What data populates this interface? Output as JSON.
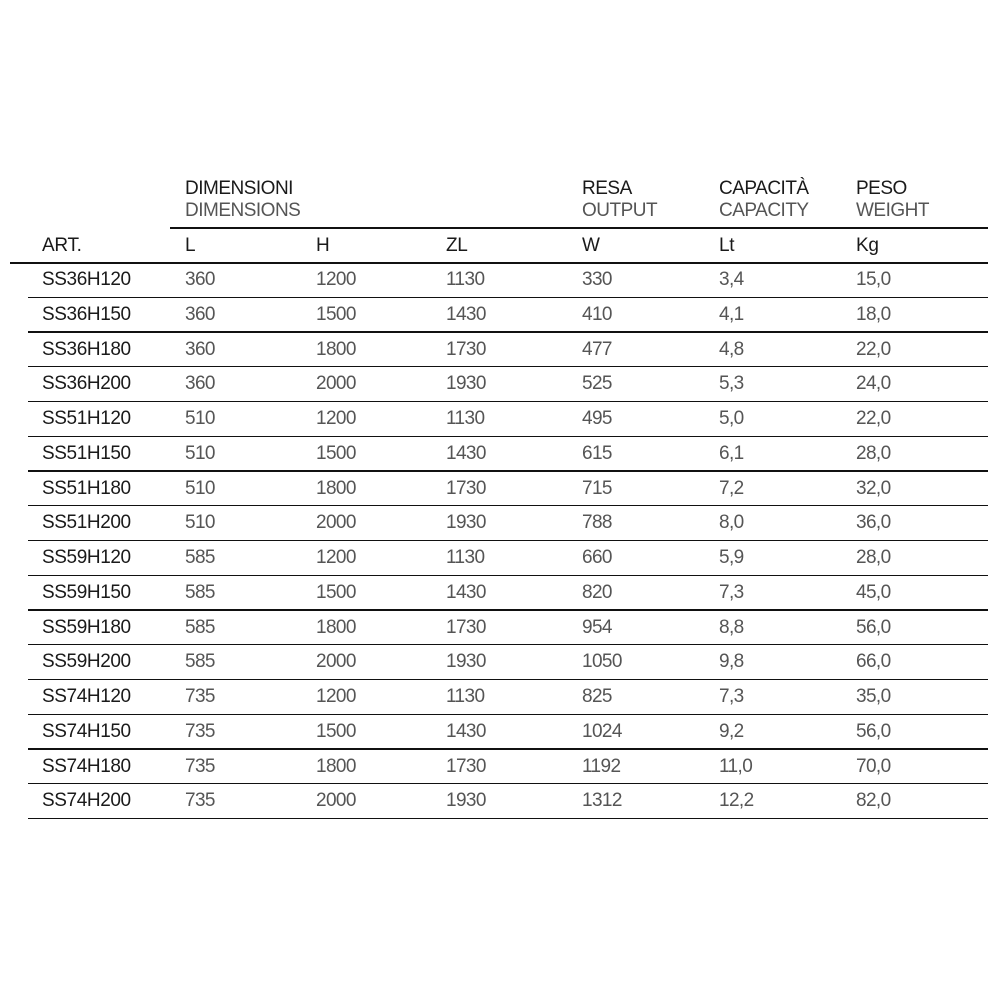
{
  "groups": {
    "dimensions": {
      "it": "DIMENSIONI",
      "en": "DIMENSIONS"
    },
    "output": {
      "it": "RESA",
      "en": "OUTPUT"
    },
    "capacity": {
      "it": "CAPACITÀ",
      "en": "CAPACITY"
    },
    "weight": {
      "it": "PESO",
      "en": "WEIGHT"
    }
  },
  "columns": [
    "ART.",
    "L",
    "H",
    "ZL",
    "W",
    "Lt",
    "Kg"
  ],
  "rows": [
    [
      "SS36H120",
      "360",
      "1200",
      "1130",
      "330",
      "3,4",
      "15,0"
    ],
    [
      "SS36H150",
      "360",
      "1500",
      "1430",
      "410",
      "4,1",
      "18,0"
    ],
    [
      "SS36H180",
      "360",
      "1800",
      "1730",
      "477",
      "4,8",
      "22,0"
    ],
    [
      "SS36H200",
      "360",
      "2000",
      "1930",
      "525",
      "5,3",
      "24,0"
    ],
    [
      "SS51H120",
      "510",
      "1200",
      "1130",
      "495",
      "5,0",
      "22,0"
    ],
    [
      "SS51H150",
      "510",
      "1500",
      "1430",
      "615",
      "6,1",
      "28,0"
    ],
    [
      "SS51H180",
      "510",
      "1800",
      "1730",
      "715",
      "7,2",
      "32,0"
    ],
    [
      "SS51H200",
      "510",
      "2000",
      "1930",
      "788",
      "8,0",
      "36,0"
    ],
    [
      "SS59H120",
      "585",
      "1200",
      "1130",
      "660",
      "5,9",
      "28,0"
    ],
    [
      "SS59H150",
      "585",
      "1500",
      "1430",
      "820",
      "7,3",
      "45,0"
    ],
    [
      "SS59H180",
      "585",
      "1800",
      "1730",
      "954",
      "8,8",
      "56,0"
    ],
    [
      "SS59H200",
      "585",
      "2000",
      "1930",
      "1050",
      "9,8",
      "66,0"
    ],
    [
      "SS74H120",
      "735",
      "1200",
      "1130",
      "825",
      "7,3",
      "35,0"
    ],
    [
      "SS74H150",
      "735",
      "1500",
      "1430",
      "1024",
      "9,2",
      "56,0"
    ],
    [
      "SS74H180",
      "735",
      "1800",
      "1730",
      "1192",
      "11,0",
      "70,0"
    ],
    [
      "SS74H200",
      "735",
      "2000",
      "1930",
      "1312",
      "12,2",
      "82,0"
    ]
  ]
}
